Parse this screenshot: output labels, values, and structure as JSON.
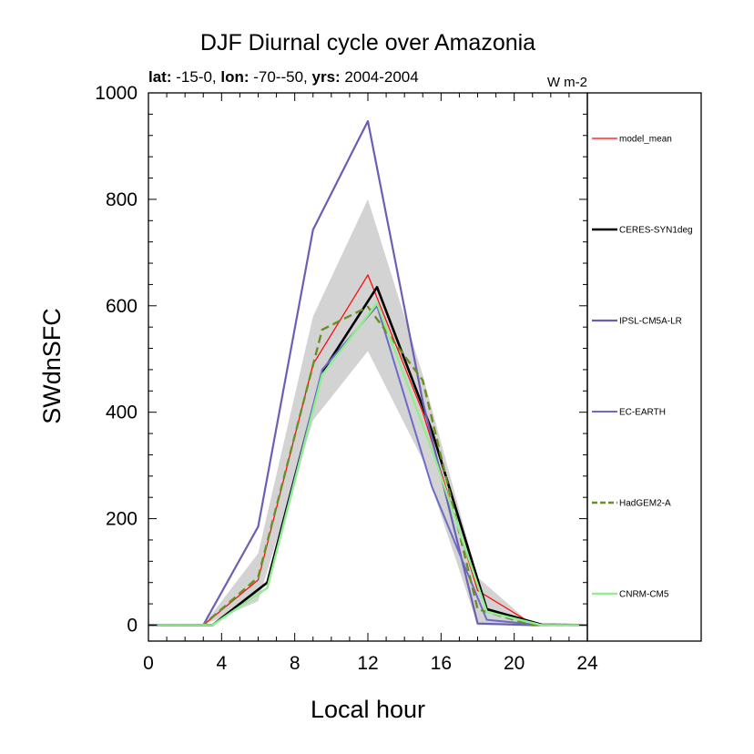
{
  "chart_data": {
    "type": "line",
    "title": "DJF Diurnal cycle over Amazonia",
    "subtitle": {
      "lat_label": "lat:",
      "lat_value": " -15-0, ",
      "lon_label": "lon:",
      "lon_value": " -70--50, ",
      "yrs_label": "yrs:",
      "yrs_value": " 2004-2004"
    },
    "units": "W m-2",
    "xlabel": "Local hour",
    "ylabel": "SWdnSFC",
    "xlim": [
      0,
      24
    ],
    "ylim": [
      -30,
      1000
    ],
    "xticks": [
      0,
      4,
      8,
      12,
      16,
      20,
      24
    ],
    "yticks": [
      0,
      200,
      400,
      600,
      800,
      1000
    ],
    "legend_position": "right",
    "spread": {
      "color": "#d3d3d3",
      "x": [
        0,
        3,
        6,
        9,
        12,
        15,
        18,
        21,
        24
      ],
      "lower": [
        0,
        0,
        45,
        385,
        515,
        310,
        0,
        0,
        0
      ],
      "upper": [
        0,
        0,
        135,
        580,
        800,
        470,
        90,
        0,
        0
      ]
    },
    "series": [
      {
        "name": "model_mean",
        "color": "#ff0000",
        "width": 1.2,
        "dash": "",
        "x": [
          0,
          3,
          6,
          9,
          12,
          15,
          18,
          21,
          24
        ],
        "y": [
          0,
          0,
          85,
          490,
          658,
          400,
          65,
          2,
          0
        ]
      },
      {
        "name": "CERES-SYN1deg",
        "color": "#000000",
        "width": 2.6,
        "dash": "",
        "x": [
          0.5,
          3.5,
          6.5,
          9.5,
          12.5,
          15.5,
          18.5,
          21.5,
          24
        ],
        "y": [
          0,
          0,
          80,
          475,
          635,
          365,
          30,
          1,
          0
        ]
      },
      {
        "name": "IPSL-CM5A-LR",
        "color": "#6b5fb5",
        "width": 2.2,
        "dash": "",
        "x": [
          0,
          3,
          6,
          9,
          12,
          15,
          18,
          21,
          24
        ],
        "y": [
          0,
          0,
          185,
          743,
          947,
          420,
          3,
          0,
          0
        ]
      },
      {
        "name": "EC-EARTH",
        "color": "#6b6bc8",
        "width": 2.0,
        "dash": "",
        "x": [
          0.5,
          3.5,
          6.5,
          9.5,
          12.5,
          15.5,
          18.5,
          21.5,
          24
        ],
        "y": [
          0,
          0,
          70,
          480,
          600,
          260,
          10,
          0,
          0
        ]
      },
      {
        "name": "HadGEM2-A",
        "color": "#6b8e23",
        "width": 2.4,
        "dash": "9,5",
        "x": [
          0,
          3,
          6,
          9.5,
          12,
          15,
          18,
          21,
          24
        ],
        "y": [
          0,
          0,
          90,
          555,
          598,
          460,
          30,
          0,
          0
        ]
      },
      {
        "name": "CNRM-CM5",
        "color": "#90ee90",
        "width": 2.4,
        "dash": "",
        "x": [
          0.5,
          3.5,
          6.5,
          9.5,
          12.5,
          15.5,
          18.5,
          21.5,
          24
        ],
        "y": [
          0,
          0,
          70,
          470,
          605,
          330,
          25,
          0,
          0
        ]
      }
    ]
  }
}
